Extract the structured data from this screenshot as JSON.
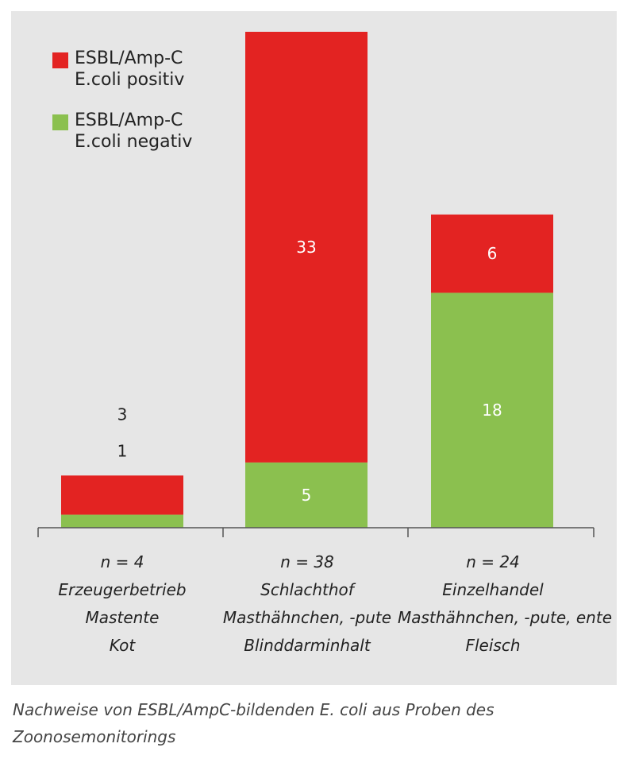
{
  "chart_data": {
    "type": "bar",
    "stacked": true,
    "categories": [
      {
        "n": "n = 4",
        "lines": [
          "Erzeugerbetrieb",
          "Mastente",
          "Kot"
        ]
      },
      {
        "n": "n = 38",
        "lines": [
          "Schlachthof",
          "Masthähnchen, -pute",
          "Blinddarminhalt"
        ]
      },
      {
        "n": "n = 24",
        "lines": [
          "Einzelhandel",
          "Masthähnchen, -pute, ente",
          "Fleisch"
        ]
      }
    ],
    "series": [
      {
        "name": "ESBL/Amp-C E.coli negativ",
        "name_lines": [
          "ESBL/Amp-C",
          "E.coli negativ"
        ],
        "color": "#8bc04f",
        "values": [
          1,
          5,
          18
        ],
        "labels": [
          "1",
          "5",
          "18"
        ]
      },
      {
        "name": "ESBL/Amp-C E.coli positiv",
        "name_lines": [
          "ESBL/Amp-C",
          "E.coli positiv"
        ],
        "color": "#e32322",
        "values": [
          3,
          33,
          6
        ],
        "labels": [
          "3",
          "33",
          "6"
        ]
      }
    ],
    "ylim": [
      0,
      38
    ],
    "legend_position": "top-left",
    "grid": false
  },
  "caption": [
    "Nachweise von ESBL/AmpC-bildenden E. coli aus Proben des",
    "Zoonosemonitorings"
  ]
}
